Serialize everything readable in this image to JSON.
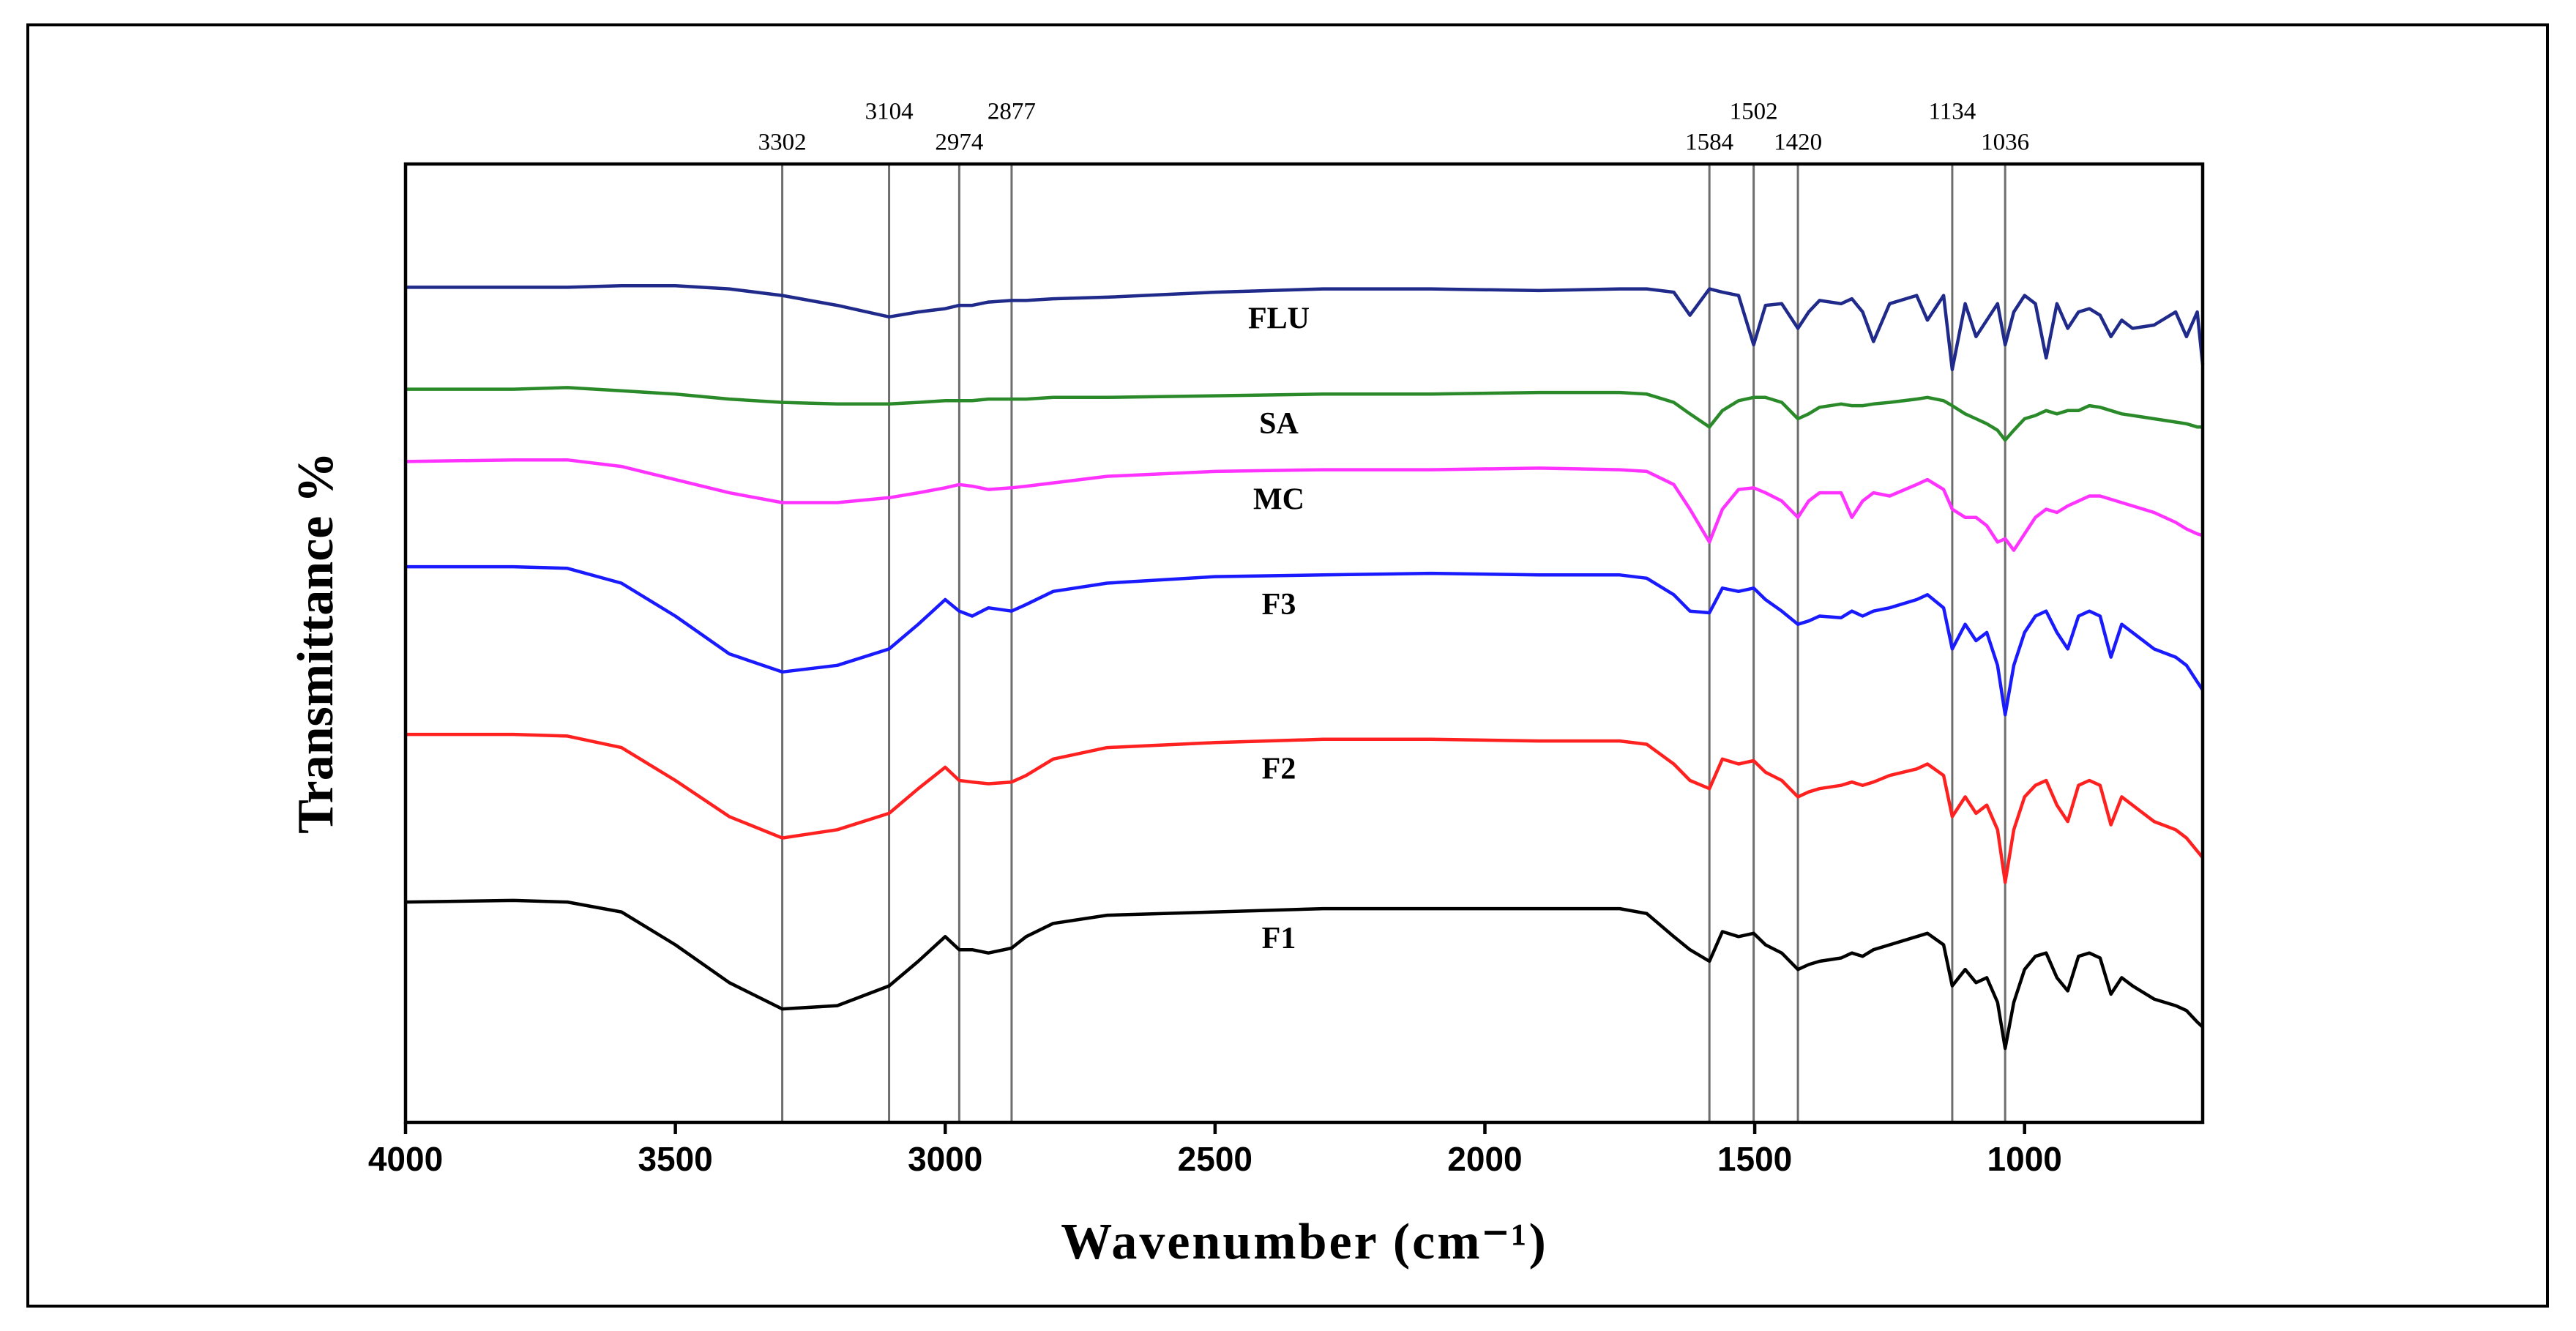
{
  "chart_data": {
    "type": "line",
    "x_label": "Wavenumber (cm⁻¹)",
    "y_label": "Transmittance %",
    "xlim": [
      4000,
      670
    ],
    "xticks": [
      4000,
      3500,
      3000,
      2500,
      2000,
      1500,
      1000
    ],
    "ylim": [
      0,
      583
    ],
    "reference_lines": [
      3302,
      3104,
      2974,
      2877,
      1584,
      1502,
      1420,
      1134,
      1036
    ],
    "x": [
      4000,
      3800,
      3700,
      3600,
      3500,
      3400,
      3302,
      3200,
      3104,
      3050,
      3000,
      2974,
      2950,
      2920,
      2877,
      2850,
      2800,
      2700,
      2500,
      2300,
      2100,
      1900,
      1750,
      1700,
      1650,
      1620,
      1584,
      1560,
      1530,
      1502,
      1480,
      1450,
      1420,
      1400,
      1380,
      1340,
      1320,
      1300,
      1280,
      1250,
      1200,
      1180,
      1150,
      1134,
      1110,
      1090,
      1070,
      1050,
      1036,
      1020,
      1000,
      980,
      960,
      940,
      920,
      900,
      880,
      860,
      840,
      820,
      800,
      760,
      720,
      700,
      680,
      670
    ],
    "series": [
      {
        "name": "FLU",
        "color": "#1f2a8a",
        "values": [
          508,
          508,
          508,
          509,
          509,
          507,
          503,
          497,
          490,
          493,
          495,
          497,
          497,
          499,
          500,
          500,
          501,
          502,
          505,
          507,
          507,
          506,
          507,
          507,
          505,
          491,
          507,
          505,
          503,
          473,
          497,
          498,
          483,
          493,
          500,
          498,
          501,
          493,
          475,
          498,
          503,
          488,
          503,
          458,
          498,
          478,
          488,
          498,
          473,
          493,
          503,
          498,
          465,
          498,
          483,
          493,
          495,
          491,
          478,
          488,
          483,
          485,
          493,
          478,
          493,
          461
        ]
      },
      {
        "name": "SA",
        "color": "#2a8a2a",
        "values": [
          446,
          446,
          447,
          445,
          443,
          440,
          438,
          437,
          437,
          438,
          439,
          439,
          439,
          440,
          440,
          440,
          441,
          441,
          442,
          443,
          443,
          444,
          444,
          443,
          438,
          431,
          423,
          433,
          439,
          441,
          441,
          438,
          428,
          431,
          435,
          437,
          436,
          436,
          437,
          438,
          440,
          441,
          439,
          436,
          431,
          428,
          425,
          421,
          415,
          421,
          428,
          430,
          433,
          431,
          433,
          433,
          436,
          435,
          433,
          431,
          430,
          428,
          426,
          425,
          423,
          423
        ]
      },
      {
        "name": "MC",
        "color": "#ff33ff",
        "values": [
          402,
          403,
          403,
          399,
          391,
          383,
          377,
          377,
          380,
          383,
          386,
          388,
          387,
          385,
          386,
          387,
          389,
          393,
          396,
          397,
          397,
          398,
          397,
          396,
          388,
          373,
          353,
          373,
          385,
          386,
          383,
          378,
          368,
          378,
          383,
          383,
          368,
          378,
          383,
          381,
          388,
          391,
          385,
          373,
          368,
          368,
          363,
          353,
          355,
          348,
          358,
          368,
          373,
          371,
          375,
          378,
          381,
          381,
          379,
          377,
          375,
          371,
          365,
          361,
          358,
          357
        ]
      },
      {
        "name": "F3",
        "color": "#1a1aff",
        "values": [
          338,
          338,
          337,
          328,
          308,
          285,
          274,
          278,
          288,
          303,
          318,
          311,
          308,
          313,
          311,
          315,
          323,
          328,
          332,
          333,
          334,
          333,
          333,
          331,
          321,
          311,
          310,
          325,
          323,
          325,
          318,
          311,
          303,
          305,
          308,
          307,
          311,
          308,
          311,
          313,
          318,
          321,
          313,
          288,
          303,
          293,
          298,
          278,
          248,
          278,
          298,
          308,
          311,
          298,
          288,
          308,
          311,
          308,
          283,
          303,
          298,
          288,
          283,
          278,
          268,
          263
        ]
      },
      {
        "name": "F2",
        "color": "#ff2020",
        "values": [
          236,
          236,
          235,
          228,
          208,
          186,
          173,
          178,
          188,
          203,
          216,
          208,
          207,
          206,
          207,
          211,
          221,
          228,
          231,
          233,
          233,
          232,
          232,
          230,
          218,
          208,
          203,
          221,
          218,
          220,
          213,
          208,
          198,
          201,
          203,
          205,
          207,
          205,
          207,
          211,
          215,
          218,
          211,
          186,
          198,
          188,
          193,
          178,
          146,
          178,
          198,
          205,
          208,
          193,
          183,
          205,
          208,
          205,
          181,
          198,
          193,
          183,
          178,
          173,
          165,
          161
        ]
      },
      {
        "name": "F1",
        "color": "#000000",
        "values": [
          134,
          135,
          134,
          128,
          108,
          85,
          69,
          71,
          83,
          98,
          113,
          105,
          105,
          103,
          106,
          113,
          121,
          126,
          128,
          130,
          130,
          130,
          130,
          127,
          113,
          105,
          98,
          116,
          113,
          115,
          108,
          103,
          93,
          96,
          98,
          100,
          103,
          101,
          105,
          108,
          113,
          115,
          108,
          83,
          93,
          85,
          88,
          73,
          45,
          73,
          93,
          101,
          103,
          88,
          80,
          101,
          103,
          100,
          78,
          88,
          83,
          75,
          71,
          68,
          61,
          58
        ]
      }
    ]
  }
}
